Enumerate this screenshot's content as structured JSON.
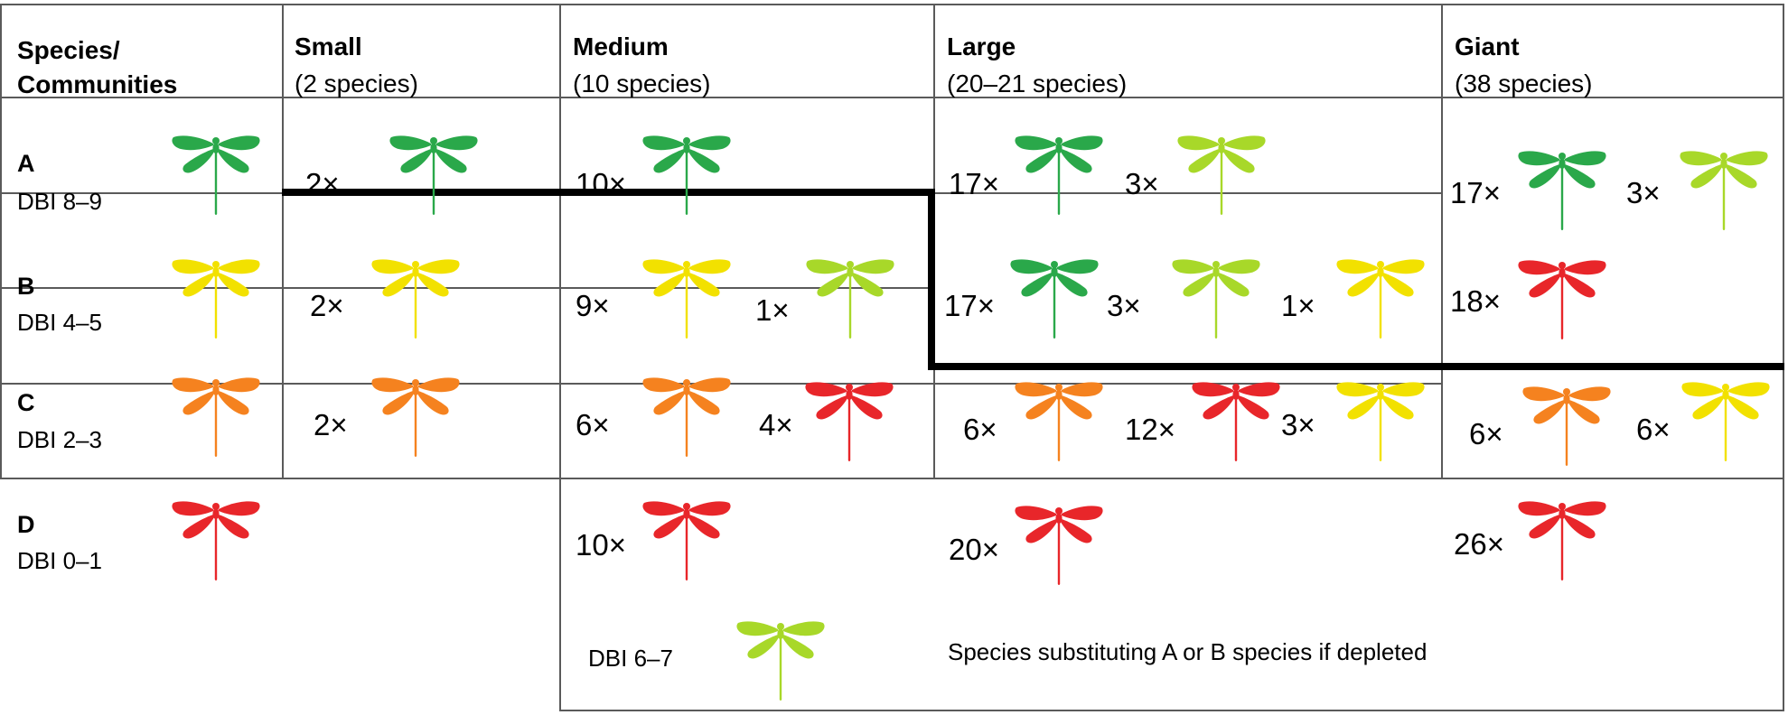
{
  "colors": {
    "A": "#2aa84a",
    "A_substitute": "#a8d829",
    "B": "#f2e100",
    "C": "#f5821f",
    "D": "#e8262a"
  },
  "icon": "dragonfly-icon",
  "header": {
    "species_communities": [
      "Species/",
      "Communities"
    ],
    "small": {
      "title": "Small",
      "sub": "(2 species)"
    },
    "medium": {
      "title": "Medium",
      "sub": "(10 species)"
    },
    "large": {
      "title": "Large",
      "sub": "(20–21 species)"
    },
    "giant": {
      "title": "Giant",
      "sub": "(38 species)"
    }
  },
  "rows": [
    {
      "letter": "A",
      "dbi": "DBI 8–9",
      "color": "A"
    },
    {
      "letter": "B",
      "dbi": "DBI 4–5",
      "color": "B"
    },
    {
      "letter": "C",
      "dbi": "DBI 2–3",
      "color": "C"
    },
    {
      "letter": "D",
      "dbi": "DBI 0–1",
      "color": "D"
    }
  ],
  "cells": {
    "A_small": [
      {
        "count": "2×",
        "color": "A"
      }
    ],
    "A_medium": [
      {
        "count": "10×",
        "color": "A"
      }
    ],
    "A_large": [
      {
        "count": "17×",
        "color": "A"
      },
      {
        "count": "3×",
        "color": "A_substitute"
      }
    ],
    "B_small": [
      {
        "count": "2×",
        "color": "B"
      }
    ],
    "B_medium": [
      {
        "count": "9×",
        "color": "B"
      },
      {
        "count": "1×",
        "color": "A_substitute"
      }
    ],
    "B_large": [
      {
        "count": "17×",
        "color": "A"
      },
      {
        "count": "3×",
        "color": "A_substitute"
      },
      {
        "count": "1×",
        "color": "B"
      }
    ],
    "AB_giant": [
      {
        "count": "17×",
        "color": "A"
      },
      {
        "count": "3×",
        "color": "A_substitute"
      },
      {
        "count": "18×",
        "color": "D"
      }
    ],
    "C_small": [
      {
        "count": "2×",
        "color": "C"
      }
    ],
    "C_medium": [
      {
        "count": "6×",
        "color": "C"
      },
      {
        "count": "4×",
        "color": "D"
      }
    ],
    "C_large": [
      {
        "count": "6×",
        "color": "C"
      },
      {
        "count": "12×",
        "color": "D"
      },
      {
        "count": "3×",
        "color": "B"
      }
    ],
    "CD_giant": [
      {
        "count": "6×",
        "color": "C"
      },
      {
        "count": "6×",
        "color": "B"
      },
      {
        "count": "26×",
        "color": "D"
      }
    ],
    "D_small": [],
    "D_medium": [
      {
        "count": "10×",
        "color": "D"
      }
    ],
    "D_large": [
      {
        "count": "20×",
        "color": "D"
      }
    ]
  },
  "legend": {
    "dbi": "DBI 6–7",
    "color": "A_substitute",
    "description": "Species substituting A or B species if depleted"
  }
}
